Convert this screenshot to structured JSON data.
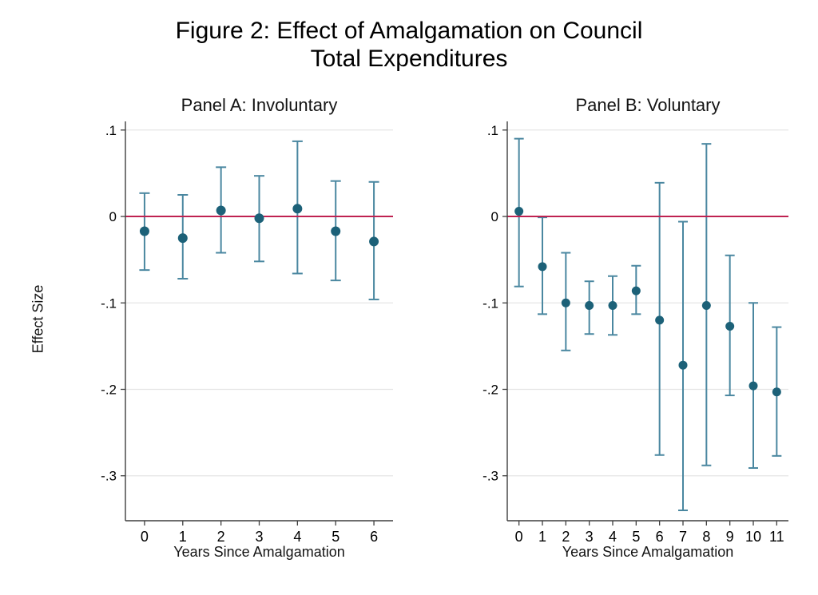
{
  "figure": {
    "title_line1": "Figure 2: Effect of Amalgamation on Council",
    "title_line2": "Total Expenditures",
    "ylabel": "Effect Size"
  },
  "colors": {
    "marker": "#1c6178",
    "whisker": "#4a87a0",
    "reference_line": "#bf2251",
    "gridline": "#e4e4e4",
    "axis": "#3f3f3f",
    "text": "#000000",
    "background": "#ffffff"
  },
  "chart_data": [
    {
      "type": "scatter",
      "subtype": "coefficient-plot-with-95ci",
      "title": "Panel A: Involuntary",
      "xlabel": "Years Since Amalgamation",
      "ylabel": "Effect Size",
      "x": [
        0,
        1,
        2,
        3,
        4,
        5,
        6
      ],
      "xtick_labels": [
        "0",
        "1",
        "2",
        "3",
        "4",
        "5",
        "6"
      ],
      "estimates": [
        -0.017,
        -0.025,
        0.007,
        -0.002,
        0.009,
        -0.017,
        -0.029
      ],
      "ci_high": [
        0.027,
        0.025,
        0.057,
        0.047,
        0.087,
        0.041,
        0.04
      ],
      "ci_low": [
        -0.062,
        -0.072,
        -0.042,
        -0.052,
        -0.066,
        -0.074,
        -0.096
      ],
      "ytick_labels": [
        ".1",
        "0",
        "-.1",
        "-.2",
        "-.3"
      ],
      "ytick_values": [
        0.1,
        0,
        -0.1,
        -0.2,
        -0.3
      ],
      "ylim": [
        -0.352,
        0.11
      ],
      "reference_line": 0,
      "grid": true,
      "legend": "none"
    },
    {
      "type": "scatter",
      "subtype": "coefficient-plot-with-95ci",
      "title": "Panel B: Voluntary",
      "xlabel": "Years Since Amalgamation",
      "ylabel": "Effect Size",
      "x": [
        0,
        1,
        2,
        3,
        4,
        5,
        6,
        7,
        8,
        9,
        10,
        11
      ],
      "xtick_labels": [
        "0",
        "1",
        "2",
        "3",
        "4",
        "5",
        "6",
        "7",
        "8",
        "9",
        "10",
        "11"
      ],
      "estimates": [
        0.006,
        -0.058,
        -0.1,
        -0.103,
        -0.103,
        -0.086,
        -0.12,
        -0.172,
        -0.103,
        -0.127,
        -0.196,
        -0.203
      ],
      "ci_high": [
        0.09,
        -0.001,
        -0.042,
        -0.075,
        -0.069,
        -0.057,
        0.039,
        -0.006,
        0.084,
        -0.045,
        -0.1,
        -0.128
      ],
      "ci_low": [
        -0.081,
        -0.113,
        -0.155,
        -0.136,
        -0.137,
        -0.113,
        -0.276,
        -0.34,
        -0.288,
        -0.207,
        -0.291,
        -0.277
      ],
      "ytick_labels": [
        ".1",
        "0",
        "-.1",
        "-.2",
        "-.3"
      ],
      "ytick_values": [
        0.1,
        0,
        -0.1,
        -0.2,
        -0.3
      ],
      "ylim": [
        -0.352,
        0.11
      ],
      "reference_line": 0,
      "grid": true,
      "legend": "none"
    }
  ]
}
